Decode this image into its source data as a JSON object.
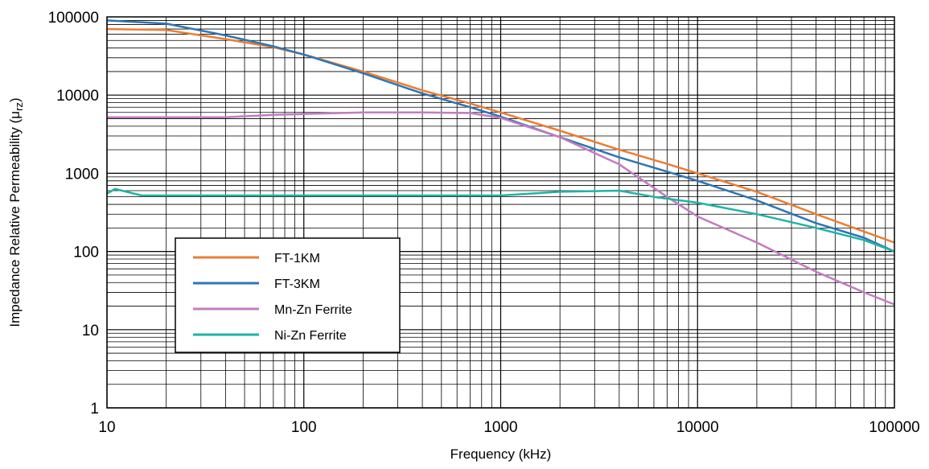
{
  "chart_data": {
    "type": "line",
    "xlabel": "Frequency (kHz)",
    "ylabel": "Impedance Relative Permeability (μ",
    "ylabel_sub": "rz",
    "ylabel_close": ")",
    "x_scale": "log",
    "y_scale": "log",
    "xlim": [
      10,
      100000
    ],
    "ylim": [
      1,
      100000
    ],
    "x_ticks": [
      "10",
      "100",
      "1000",
      "10000",
      "100000"
    ],
    "y_ticks": [
      "1",
      "10",
      "100",
      "1000",
      "10000",
      "100000"
    ],
    "grid": true,
    "legend_position": "lower-left",
    "series": [
      {
        "name": "FT-1KM",
        "color": "#ED7D31",
        "x": [
          10,
          20,
          40,
          70,
          100,
          200,
          400,
          700,
          1000,
          2000,
          4000,
          7000,
          10000,
          20000,
          40000,
          70000,
          100000
        ],
        "y": [
          70000,
          68000,
          52000,
          41000,
          33000,
          20000,
          11500,
          7800,
          6000,
          3500,
          2000,
          1320,
          1000,
          580,
          300,
          180,
          130
        ]
      },
      {
        "name": "FT-3KM",
        "color": "#2E75B6",
        "x": [
          10,
          20,
          40,
          70,
          100,
          200,
          400,
          700,
          1000,
          2000,
          4000,
          7000,
          10000,
          20000,
          40000,
          70000,
          100000
        ],
        "y": [
          90000,
          82000,
          58000,
          42000,
          33000,
          19000,
          10500,
          7000,
          5300,
          2900,
          1600,
          1050,
          800,
          450,
          230,
          150,
          100
        ]
      },
      {
        "name": "Mn-Zn Ferrite",
        "color": "#C37BC1",
        "x": [
          10,
          40,
          70,
          200,
          400,
          700,
          1000,
          2000,
          4000,
          7000,
          10000,
          20000,
          40000,
          70000,
          100000
        ],
        "y": [
          5200,
          5200,
          5600,
          6000,
          6000,
          5900,
          5100,
          2900,
          1300,
          500,
          280,
          130,
          55,
          30,
          21
        ]
      },
      {
        "name": "Ni-Zn Ferrite",
        "color": "#1FB3A7",
        "x": [
          10,
          11,
          15,
          30,
          100,
          200,
          1000,
          2000,
          4000,
          6000,
          10000,
          20000,
          40000,
          70000,
          100000
        ],
        "y": [
          550,
          630,
          520,
          520,
          520,
          520,
          520,
          580,
          600,
          500,
          420,
          300,
          200,
          140,
          100
        ]
      }
    ]
  }
}
